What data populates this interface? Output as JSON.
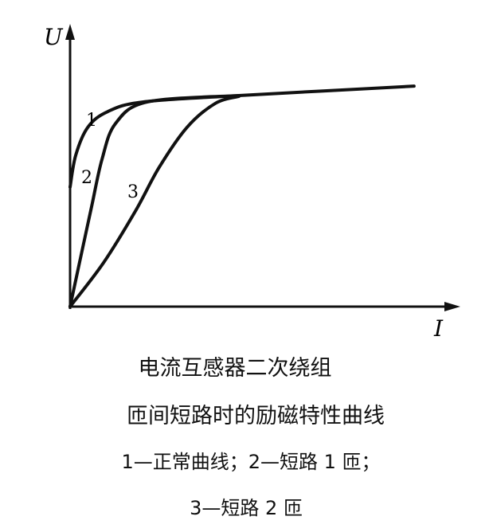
{
  "chart_data": {
    "type": "line",
    "title": "",
    "xlabel": "I",
    "ylabel": "U",
    "xlim": [
      0,
      10
    ],
    "ylim": [
      0,
      10
    ],
    "grid": false,
    "ticks": false,
    "series": [
      {
        "name": "1",
        "x": [
          0,
          0.15,
          0.47,
          1.0,
          1.95,
          4.49,
          9.15
        ],
        "y": [
          4.55,
          5.76,
          6.82,
          7.42,
          7.79,
          8.03,
          8.39
        ]
      },
      {
        "name": "2",
        "x": [
          0,
          0.25,
          0.57,
          0.85,
          1.21,
          2.06,
          4.49
        ],
        "y": [
          0,
          1.67,
          3.79,
          5.61,
          6.97,
          7.79,
          8.03
        ]
      },
      {
        "name": "3",
        "x": [
          0,
          0.89,
          1.74,
          2.37,
          3.11,
          3.86,
          4.49
        ],
        "y": [
          0,
          1.67,
          3.64,
          5.3,
          6.82,
          7.73,
          8.0
        ]
      }
    ],
    "color": "#111111"
  },
  "caption": {
    "line1": "电流互感器二次绕组",
    "line2": "匝间短路时的励磁特性曲线",
    "line3": "1—正常曲线；2—短路 1 匝；",
    "line4": "3—短路 2 匝"
  }
}
